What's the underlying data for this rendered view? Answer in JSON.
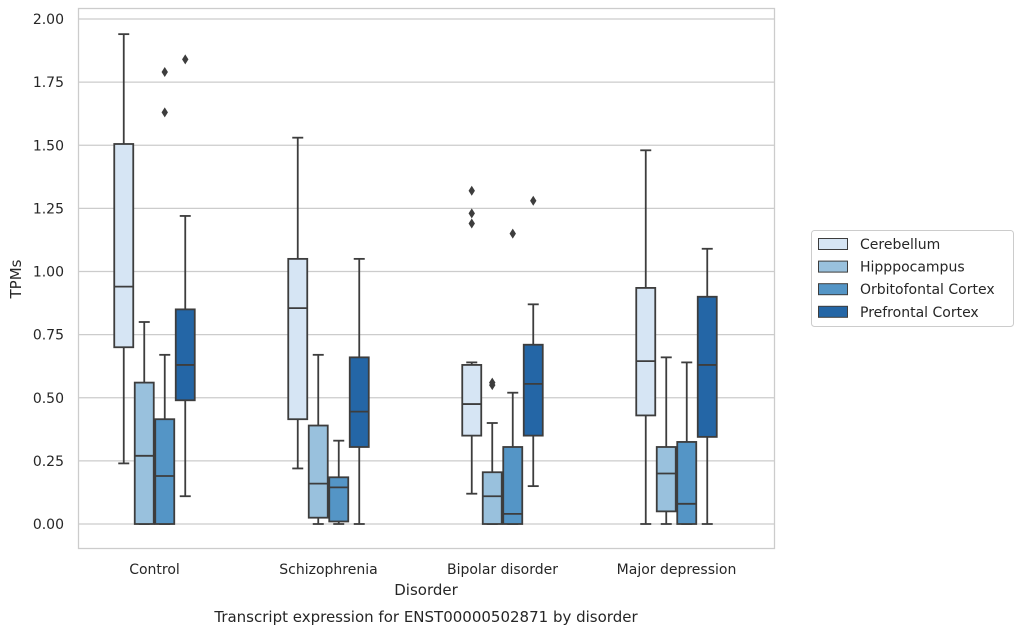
{
  "chart_data": {
    "type": "box",
    "xlabel": "Disorder",
    "ylabel": "TPMs",
    "caption": "Transcript expression for ENST00000502871 by disorder",
    "ylim": [
      -0.1,
      2.03
    ],
    "yticks": [
      "0.00",
      "0.25",
      "0.50",
      "0.75",
      "1.00",
      "1.25",
      "1.50",
      "1.75",
      "2.00"
    ],
    "grid": "horizontal",
    "legend_position": "right",
    "categories": [
      "Control",
      "Schizophrenia",
      "Bipolar disorder",
      "Major depression"
    ],
    "series": [
      {
        "name": "Cerebellum",
        "color": "#d6e5f4"
      },
      {
        "name": "Hipppocampus",
        "color": "#99c1dd"
      },
      {
        "name": "Orbitofontal Cortex",
        "color": "#5495c6"
      },
      {
        "name": "Prefrontal Cortex",
        "color": "#2466a6"
      }
    ],
    "boxes": [
      [
        {
          "whislo": 0.24,
          "q1": 0.7,
          "med": 0.94,
          "q3": 1.505,
          "whishi": 1.94,
          "fliers": []
        },
        {
          "whislo": 0.0,
          "q1": 0.0,
          "med": 0.27,
          "q3": 0.56,
          "whishi": 0.8,
          "fliers": []
        },
        {
          "whislo": 0.0,
          "q1": 0.0,
          "med": 0.19,
          "q3": 0.415,
          "whishi": 0.67,
          "fliers": [
            1.63,
            1.79
          ]
        },
        {
          "whislo": 0.11,
          "q1": 0.49,
          "med": 0.63,
          "q3": 0.85,
          "whishi": 1.22,
          "fliers": [
            1.84
          ]
        }
      ],
      [
        {
          "whislo": 0.22,
          "q1": 0.415,
          "med": 0.855,
          "q3": 1.05,
          "whishi": 1.53,
          "fliers": []
        },
        {
          "whislo": 0.0,
          "q1": 0.025,
          "med": 0.16,
          "q3": 0.39,
          "whishi": 0.67,
          "fliers": []
        },
        {
          "whislo": 0.0,
          "q1": 0.01,
          "med": 0.145,
          "q3": 0.185,
          "whishi": 0.33,
          "fliers": []
        },
        {
          "whislo": 0.0,
          "q1": 0.305,
          "med": 0.445,
          "q3": 0.66,
          "whishi": 1.05,
          "fliers": []
        }
      ],
      [
        {
          "whislo": 0.12,
          "q1": 0.35,
          "med": 0.475,
          "q3": 0.63,
          "whishi": 0.64,
          "fliers": [
            1.19,
            1.23,
            1.32
          ]
        },
        {
          "whislo": 0.0,
          "q1": 0.0,
          "med": 0.11,
          "q3": 0.205,
          "whishi": 0.4,
          "fliers": [
            0.55,
            0.56
          ]
        },
        {
          "whislo": 0.0,
          "q1": 0.0,
          "med": 0.04,
          "q3": 0.305,
          "whishi": 0.52,
          "fliers": [
            1.15
          ]
        },
        {
          "whislo": 0.15,
          "q1": 0.35,
          "med": 0.555,
          "q3": 0.71,
          "whishi": 0.87,
          "fliers": [
            1.28
          ]
        }
      ],
      [
        {
          "whislo": 0.0,
          "q1": 0.43,
          "med": 0.645,
          "q3": 0.935,
          "whishi": 1.48,
          "fliers": []
        },
        {
          "whislo": 0.0,
          "q1": 0.05,
          "med": 0.2,
          "q3": 0.305,
          "whishi": 0.66,
          "fliers": []
        },
        {
          "whislo": 0.0,
          "q1": 0.0,
          "med": 0.08,
          "q3": 0.325,
          "whishi": 0.64,
          "fliers": []
        },
        {
          "whislo": 0.0,
          "q1": 0.345,
          "med": 0.63,
          "q3": 0.9,
          "whishi": 1.09,
          "fliers": []
        }
      ]
    ]
  }
}
